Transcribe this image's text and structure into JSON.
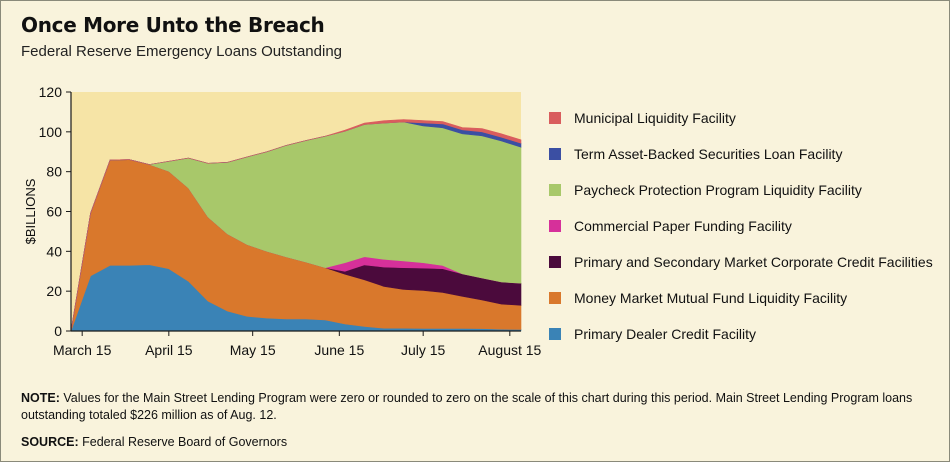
{
  "header": {
    "title": "Once More Unto the Breach",
    "subtitle": "Federal Reserve Emergency Loans Outstanding"
  },
  "footer": {
    "note_label": "NOTE:",
    "note_text": "Values for the Main Street Lending Program were zero or rounded to zero on the scale of this chart during this period. Main Street Lending Program loans outstanding totaled $226 million as of Aug. 12.",
    "source_label": "SOURCE:",
    "source_text": "Federal Reserve Board of Governors"
  },
  "colors": {
    "plot_background": "#f6e4a6",
    "axis": "#1a1a1a",
    "grid": "#e9d69a"
  },
  "chart_data": {
    "type": "area",
    "stacked": true,
    "title": "Once More Unto the Breach",
    "subtitle": "Federal Reserve Emergency Loans Outstanding",
    "xlabel": "",
    "ylabel": "$BILLIONS",
    "ylim": [
      0,
      120
    ],
    "yticks": [
      0,
      20,
      40,
      60,
      80,
      100,
      120
    ],
    "xlim": [
      "2020-03-11",
      "2020-08-19"
    ],
    "xtick_labels": [
      {
        "date": "2020-03-15",
        "label": "March 15"
      },
      {
        "date": "2020-04-15",
        "label": "April 15"
      },
      {
        "date": "2020-05-15",
        "label": "May 15"
      },
      {
        "date": "2020-06-15",
        "label": "June 15"
      },
      {
        "date": "2020-07-15",
        "label": "July 15"
      },
      {
        "date": "2020-08-15",
        "label": "August 15"
      }
    ],
    "grid": false,
    "legend_position": "right",
    "x": [
      "2020-03-11",
      "2020-03-18",
      "2020-03-25",
      "2020-04-01",
      "2020-04-08",
      "2020-04-15",
      "2020-04-22",
      "2020-04-29",
      "2020-05-06",
      "2020-05-13",
      "2020-05-20",
      "2020-05-27",
      "2020-06-03",
      "2020-06-10",
      "2020-06-17",
      "2020-06-24",
      "2020-07-01",
      "2020-07-08",
      "2020-07-15",
      "2020-07-22",
      "2020-07-29",
      "2020-08-05",
      "2020-08-12",
      "2020-08-19"
    ],
    "series": [
      {
        "name": "Primary Dealer Credit Facility",
        "color": "#3a83b6",
        "values": [
          0,
          27.7,
          33,
          33,
          33.3,
          31.3,
          25,
          15,
          10,
          7.4,
          6.5,
          6.1,
          6.1,
          5.5,
          3.5,
          2.3,
          1.4,
          1.4,
          1.3,
          1.3,
          1.3,
          1.2,
          0.9,
          0.8
        ]
      },
      {
        "name": "Money Market Mutual Fund Liquidity Facility",
        "color": "#d9782c",
        "values": [
          0,
          31.5,
          52.9,
          53,
          50.3,
          48.9,
          46.8,
          42.2,
          38.7,
          36,
          33.5,
          31.1,
          28.5,
          26.3,
          25,
          23.4,
          21,
          19.5,
          19.1,
          18.1,
          16.1,
          14.4,
          12.6,
          12.1
        ]
      },
      {
        "name": "Primary and Secondary Market Corporate Credit Facilities",
        "color": "#4b0a3c",
        "values": [
          0,
          0,
          0,
          0,
          0,
          0,
          0,
          0,
          0,
          0,
          0,
          0,
          0,
          0,
          1.5,
          7.5,
          9.7,
          10.9,
          11.2,
          11.9,
          11.3,
          11,
          11.1,
          11.1
        ]
      },
      {
        "name": "Commercial Paper Funding Facility",
        "color": "#d6309a",
        "values": [
          0,
          0,
          0,
          0,
          0,
          0,
          0,
          0,
          0,
          0,
          0,
          0,
          0,
          0,
          4.3,
          4.1,
          3.9,
          3.4,
          2.7,
          1.6,
          0,
          0,
          0,
          0
        ]
      },
      {
        "name": "Paycheck Protection Program Liquidity Facility",
        "color": "#a8c86a",
        "values": [
          0,
          0,
          0,
          0,
          0,
          5,
          15,
          27,
          36,
          44,
          50,
          56,
          61,
          66,
          66,
          66.4,
          68.4,
          69.8,
          68.7,
          69.1,
          70.3,
          71.4,
          70.8,
          68.3
        ]
      },
      {
        "name": "Term Asset-Backed Securities Loan Facility",
        "color": "#3b4fa3",
        "values": [
          0,
          0,
          0,
          0,
          0,
          0,
          0,
          0,
          0,
          0,
          0,
          0,
          0,
          0,
          0,
          0,
          0,
          0,
          1.5,
          2,
          2,
          2,
          1.9,
          2
        ]
      },
      {
        "name": "Municipal Liquidity Facility",
        "color": "#d95d5d",
        "values": [
          0,
          0,
          0,
          0,
          0,
          0,
          0,
          0,
          0,
          0,
          0,
          0,
          0,
          0,
          0.5,
          0.7,
          1.2,
          1.2,
          1.2,
          1.2,
          1.2,
          1.6,
          1.7,
          1.7
        ]
      }
    ],
    "legend_order": [
      "Municipal Liquidity Facility",
      "Term Asset-Backed Securities Loan Facility",
      "Paycheck Protection Program Liquidity Facility",
      "Commercial Paper Funding Facility",
      "Primary and Secondary Market Corporate Credit Facilities",
      "Money Market Mutual Fund Liquidity Facility",
      "Primary Dealer Credit Facility"
    ]
  }
}
